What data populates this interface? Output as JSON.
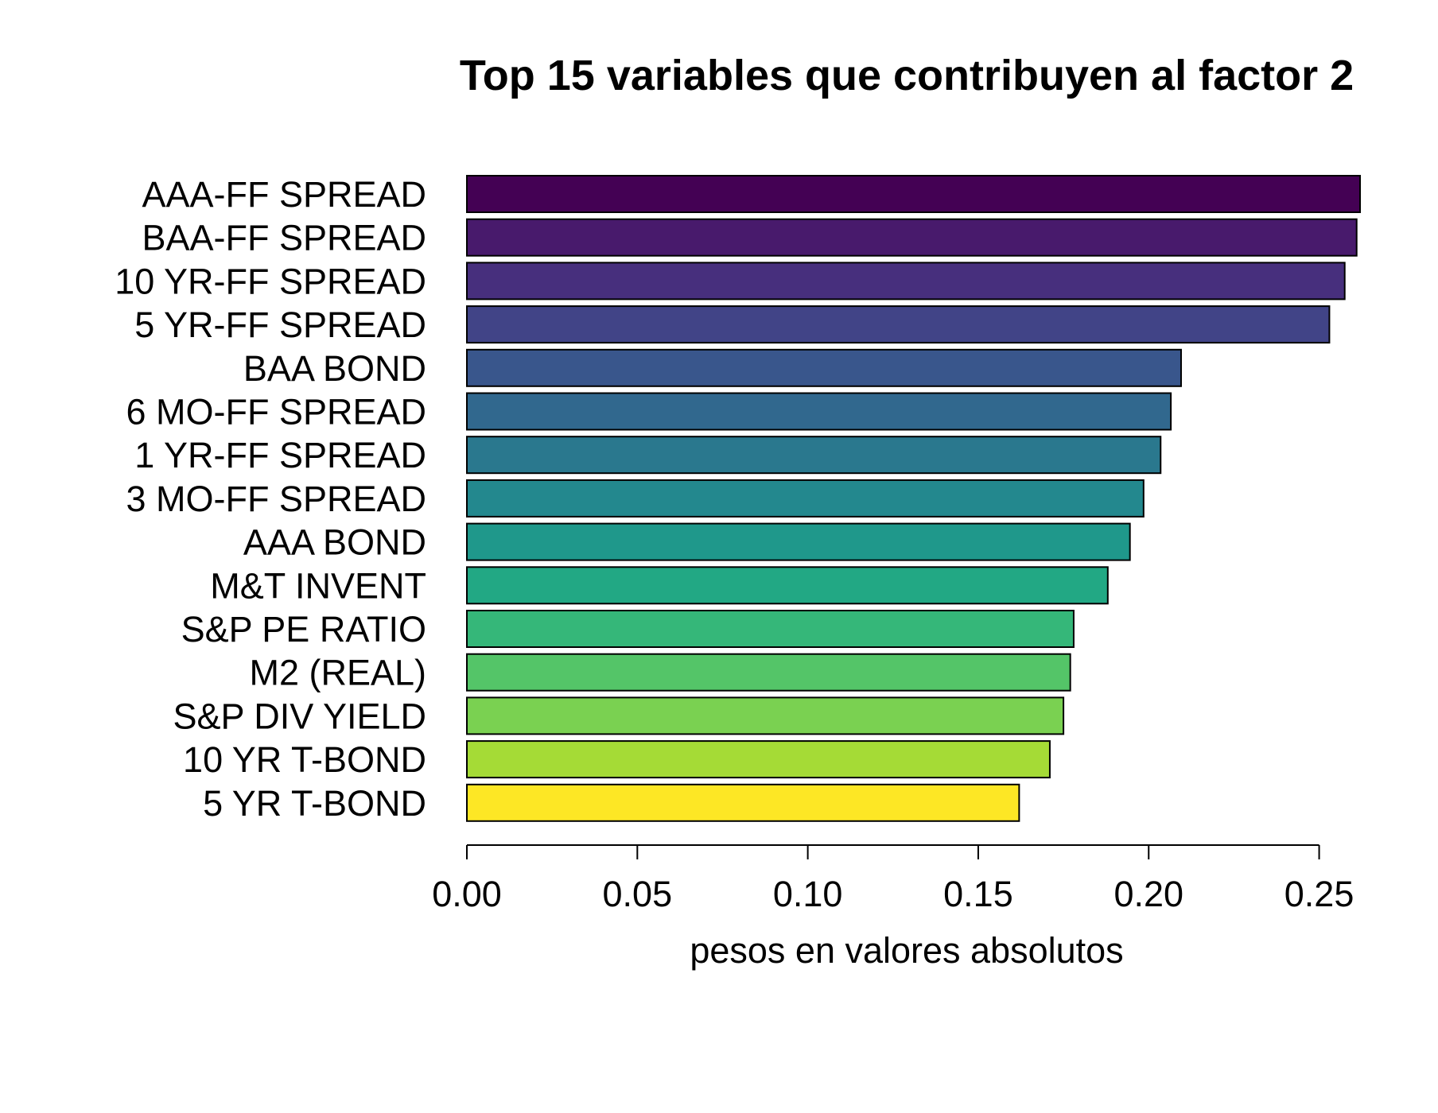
{
  "chart_data": {
    "type": "bar",
    "orientation": "horizontal",
    "title": "Top 15 variables que contribuyen al factor 2",
    "xlabel": "pesos en valores absolutos",
    "ylabel": "",
    "xlim": [
      0,
      0.262
    ],
    "xticks": [
      0.0,
      0.05,
      0.1,
      0.15,
      0.2,
      0.25
    ],
    "xtick_labels": [
      "0.00",
      "0.05",
      "0.10",
      "0.15",
      "0.20",
      "0.25"
    ],
    "grid": false,
    "categories": [
      "AAA-FF SPREAD",
      "BAA-FF SPREAD",
      "10 YR-FF SPREAD",
      "5 YR-FF SPREAD",
      "BAA BOND",
      "6 MO-FF SPREAD",
      "1 YR-FF SPREAD",
      "3 MO-FF SPREAD",
      "AAA BOND",
      "M&T INVENT",
      "S&P PE RATIO",
      "M2 (REAL)",
      "S&P DIV YIELD",
      "10 YR T-BOND",
      "5 YR T-BOND"
    ],
    "values": [
      0.262,
      0.261,
      0.2575,
      0.253,
      0.2095,
      0.2065,
      0.2035,
      0.1985,
      0.1945,
      0.188,
      0.178,
      0.177,
      0.175,
      0.171,
      0.162
    ],
    "colors": [
      "#440154",
      "#481a6c",
      "#472f7d",
      "#414487",
      "#39568c",
      "#31688e",
      "#2a788e",
      "#23888e",
      "#1f988b",
      "#22a884",
      "#35b779",
      "#54c568",
      "#7ad151",
      "#a5db36",
      "#fde725"
    ]
  }
}
